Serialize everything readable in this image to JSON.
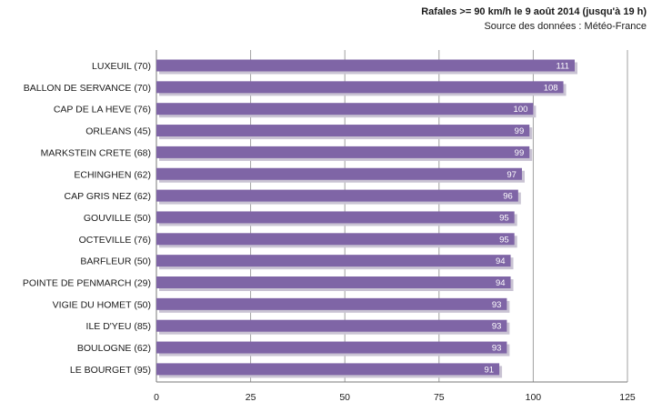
{
  "chart_data": {
    "type": "bar",
    "orientation": "horizontal",
    "title": "Rafales >= 90 km/h le 9 août 2014 (jusqu'à 19 h)",
    "subtitle": "Source des données : Météo-France",
    "categories": [
      "LUXEUIL (70)",
      "BALLON DE SERVANCE (70)",
      "CAP DE LA HEVE (76)",
      "ORLEANS (45)",
      "MARKSTEIN CRETE (68)",
      "ECHINGHEN (62)",
      "CAP GRIS NEZ (62)",
      "GOUVILLE (50)",
      "OCTEVILLE (76)",
      "BARFLEUR (50)",
      "POINTE DE PENMARCH (29)",
      "VIGIE DU HOMET (50)",
      "ILE D'YEU (85)",
      "BOULOGNE (62)",
      "LE BOURGET (95)"
    ],
    "values": [
      111,
      108,
      100,
      99,
      99,
      97,
      96,
      95,
      95,
      94,
      94,
      93,
      93,
      93,
      91
    ],
    "xlim": [
      0,
      125
    ],
    "xticks": [
      0,
      25,
      50,
      75,
      100,
      125
    ],
    "grid": true,
    "legend": "none",
    "bar_color": "#7f65a6",
    "bar_shadow_color": "#c9c3d3",
    "grid_color": "#a0a0a0"
  }
}
